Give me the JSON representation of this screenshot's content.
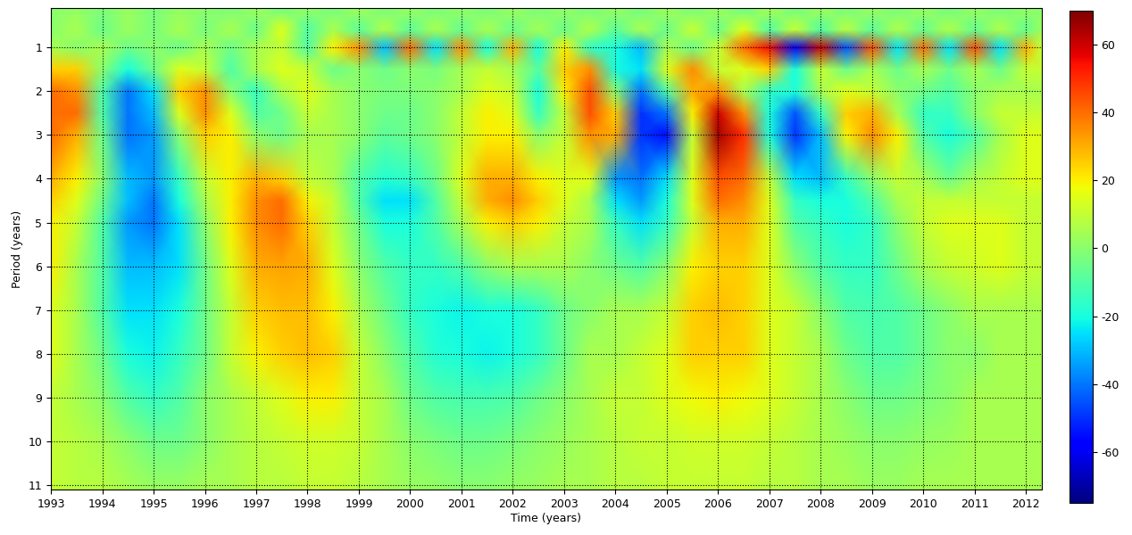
{
  "chart_data": {
    "type": "heatmap",
    "x_label": "Time (years)",
    "y_label": "Period (years)",
    "x": [
      1993.0,
      1993.5,
      1994.0,
      1994.5,
      1995.0,
      1995.5,
      1996.0,
      1996.5,
      1997.0,
      1997.5,
      1998.0,
      1998.5,
      1999.0,
      1999.5,
      2000.0,
      2000.5,
      2001.0,
      2001.5,
      2002.0,
      2002.5,
      2003.0,
      2003.5,
      2004.0,
      2004.5,
      2005.0,
      2005.5,
      2006.0,
      2006.5,
      2007.0,
      2007.5,
      2008.0,
      2008.5,
      2009.0,
      2009.5,
      2010.0,
      2010.5,
      2011.0,
      2011.5,
      2012.0,
      2012.3
    ],
    "y": [
      0.1,
      0.6,
      1,
      1.5,
      2,
      2.5,
      3,
      4,
      4.5,
      5,
      6,
      7,
      8,
      9,
      10,
      11.1
    ],
    "cells": [
      [
        0,
        2,
        -2,
        3,
        -3,
        2,
        0,
        -2,
        3,
        -4,
        2,
        -3,
        4,
        -2,
        3,
        -3,
        2,
        -3,
        3,
        -2,
        2,
        -3,
        3,
        -4,
        4,
        -3,
        3,
        -5,
        5,
        -4,
        4,
        -3,
        3,
        -3,
        3,
        -4,
        3,
        -3,
        2,
        0
      ],
      [
        0,
        5,
        -5,
        3,
        -3,
        5,
        -3,
        5,
        -5,
        15,
        -10,
        5,
        -8,
        6,
        -8,
        5,
        -6,
        5,
        -5,
        4,
        -5,
        6,
        -8,
        5,
        -5,
        10,
        -5,
        15,
        -10,
        10,
        -10,
        8,
        -8,
        6,
        -6,
        6,
        -6,
        6,
        -6,
        3
      ],
      [
        5,
        0,
        5,
        -5,
        0,
        -5,
        5,
        -5,
        5,
        10,
        -10,
        20,
        35,
        -30,
        40,
        -25,
        35,
        -20,
        30,
        -20,
        20,
        -15,
        -20,
        -30,
        5,
        -5,
        10,
        40,
        55,
        -60,
        60,
        -45,
        45,
        -25,
        40,
        -25,
        45,
        -25,
        30,
        10
      ],
      [
        25,
        25,
        0,
        -20,
        -5,
        15,
        10,
        -10,
        5,
        15,
        10,
        -5,
        0,
        -5,
        0,
        -3,
        5,
        10,
        5,
        -10,
        25,
        35,
        -20,
        -25,
        15,
        35,
        10,
        15,
        25,
        -20,
        10,
        -5,
        5,
        -5,
        5,
        -5,
        5,
        -5,
        10,
        10
      ],
      [
        40,
        35,
        -10,
        -40,
        -25,
        25,
        35,
        0,
        -15,
        5,
        15,
        5,
        0,
        -3,
        -2,
        0,
        5,
        15,
        10,
        -20,
        20,
        45,
        0,
        -40,
        -10,
        30,
        35,
        5,
        -15,
        -20,
        5,
        15,
        10,
        0,
        -5,
        -10,
        0,
        5,
        5,
        5
      ],
      [
        40,
        40,
        -10,
        -40,
        -30,
        15,
        35,
        15,
        -10,
        -5,
        10,
        5,
        0,
        -5,
        -5,
        0,
        10,
        20,
        15,
        -15,
        10,
        45,
        25,
        -50,
        -40,
        20,
        60,
        35,
        -20,
        -45,
        -15,
        25,
        30,
        5,
        -15,
        -15,
        0,
        10,
        10,
        10
      ],
      [
        40,
        30,
        -5,
        -40,
        -35,
        0,
        25,
        20,
        0,
        -5,
        5,
        5,
        0,
        -8,
        -5,
        0,
        10,
        20,
        20,
        0,
        10,
        35,
        30,
        -50,
        -55,
        10,
        65,
        50,
        -20,
        -50,
        -30,
        20,
        35,
        20,
        -10,
        -20,
        -10,
        5,
        15,
        15
      ],
      [
        30,
        20,
        0,
        -30,
        -35,
        -15,
        10,
        20,
        30,
        25,
        10,
        5,
        -10,
        -18,
        -15,
        -5,
        15,
        30,
        30,
        20,
        15,
        15,
        -35,
        -40,
        -25,
        15,
        45,
        40,
        10,
        -25,
        -30,
        -15,
        0,
        10,
        5,
        -5,
        5,
        10,
        15,
        15
      ],
      [
        25,
        15,
        -5,
        -30,
        -40,
        -20,
        5,
        20,
        35,
        40,
        20,
        10,
        -10,
        -25,
        -25,
        -10,
        10,
        30,
        35,
        25,
        15,
        5,
        -25,
        -35,
        -20,
        15,
        40,
        35,
        15,
        -15,
        -20,
        -20,
        -10,
        5,
        10,
        10,
        10,
        10,
        10,
        10
      ],
      [
        20,
        10,
        -10,
        -35,
        -40,
        -25,
        0,
        20,
        35,
        40,
        25,
        10,
        -5,
        -20,
        -20,
        -10,
        5,
        20,
        25,
        20,
        10,
        5,
        -15,
        -25,
        -15,
        10,
        30,
        30,
        15,
        -10,
        -15,
        -20,
        -15,
        0,
        10,
        15,
        15,
        15,
        10,
        10
      ],
      [
        20,
        5,
        -10,
        -30,
        -30,
        -25,
        -5,
        15,
        30,
        32,
        30,
        15,
        0,
        -10,
        -15,
        -15,
        -10,
        0,
        5,
        5,
        5,
        0,
        -5,
        -10,
        0,
        20,
        25,
        25,
        15,
        0,
        -10,
        -15,
        -15,
        -5,
        5,
        10,
        12,
        15,
        10,
        10
      ],
      [
        15,
        5,
        -10,
        -25,
        -25,
        -20,
        -5,
        10,
        25,
        28,
        28,
        20,
        5,
        -5,
        -15,
        -20,
        -22,
        -20,
        -20,
        -15,
        -5,
        0,
        5,
        5,
        10,
        25,
        28,
        25,
        15,
        10,
        0,
        -10,
        -12,
        -10,
        -5,
        0,
        5,
        5,
        5,
        5
      ],
      [
        15,
        5,
        -5,
        -20,
        -22,
        -15,
        -5,
        10,
        20,
        25,
        28,
        25,
        10,
        0,
        -10,
        -18,
        -20,
        -22,
        -20,
        -15,
        -5,
        5,
        5,
        10,
        15,
        25,
        25,
        25,
        15,
        10,
        5,
        -5,
        -10,
        -10,
        -5,
        0,
        0,
        5,
        5,
        5
      ],
      [
        10,
        5,
        0,
        -10,
        -15,
        -10,
        0,
        5,
        10,
        15,
        20,
        20,
        10,
        5,
        -5,
        -10,
        -12,
        -12,
        -10,
        -5,
        0,
        5,
        10,
        10,
        15,
        18,
        20,
        18,
        15,
        10,
        5,
        0,
        -5,
        -5,
        -2,
        0,
        5,
        5,
        5,
        5
      ],
      [
        10,
        8,
        5,
        0,
        -5,
        -5,
        0,
        5,
        8,
        10,
        12,
        12,
        10,
        5,
        0,
        -3,
        -5,
        -5,
        -3,
        0,
        3,
        5,
        8,
        10,
        10,
        12,
        12,
        12,
        10,
        8,
        5,
        3,
        0,
        0,
        2,
        3,
        5,
        5,
        5,
        5
      ],
      [
        10,
        8,
        8,
        5,
        3,
        3,
        5,
        5,
        8,
        8,
        10,
        10,
        8,
        5,
        3,
        2,
        0,
        0,
        2,
        3,
        5,
        5,
        8,
        8,
        10,
        10,
        10,
        10,
        8,
        8,
        5,
        5,
        3,
        3,
        5,
        5,
        5,
        5,
        5,
        5
      ]
    ],
    "xlim": [
      1993,
      2012.3
    ],
    "ylim": [
      11.1,
      0.1
    ],
    "xticks": [
      1993,
      1994,
      1995,
      1996,
      1997,
      1998,
      1999,
      2000,
      2001,
      2002,
      2003,
      2004,
      2005,
      2006,
      2007,
      2008,
      2009,
      2010,
      2011,
      2012
    ],
    "yticks": [
      1,
      2,
      3,
      4,
      5,
      6,
      7,
      8,
      9,
      10,
      11
    ],
    "colorbar_range": [
      -75,
      70
    ],
    "colorbar_ticks": [
      -60,
      -40,
      -20,
      0,
      20,
      40,
      60
    ],
    "color": "jet",
    "grid": true
  }
}
